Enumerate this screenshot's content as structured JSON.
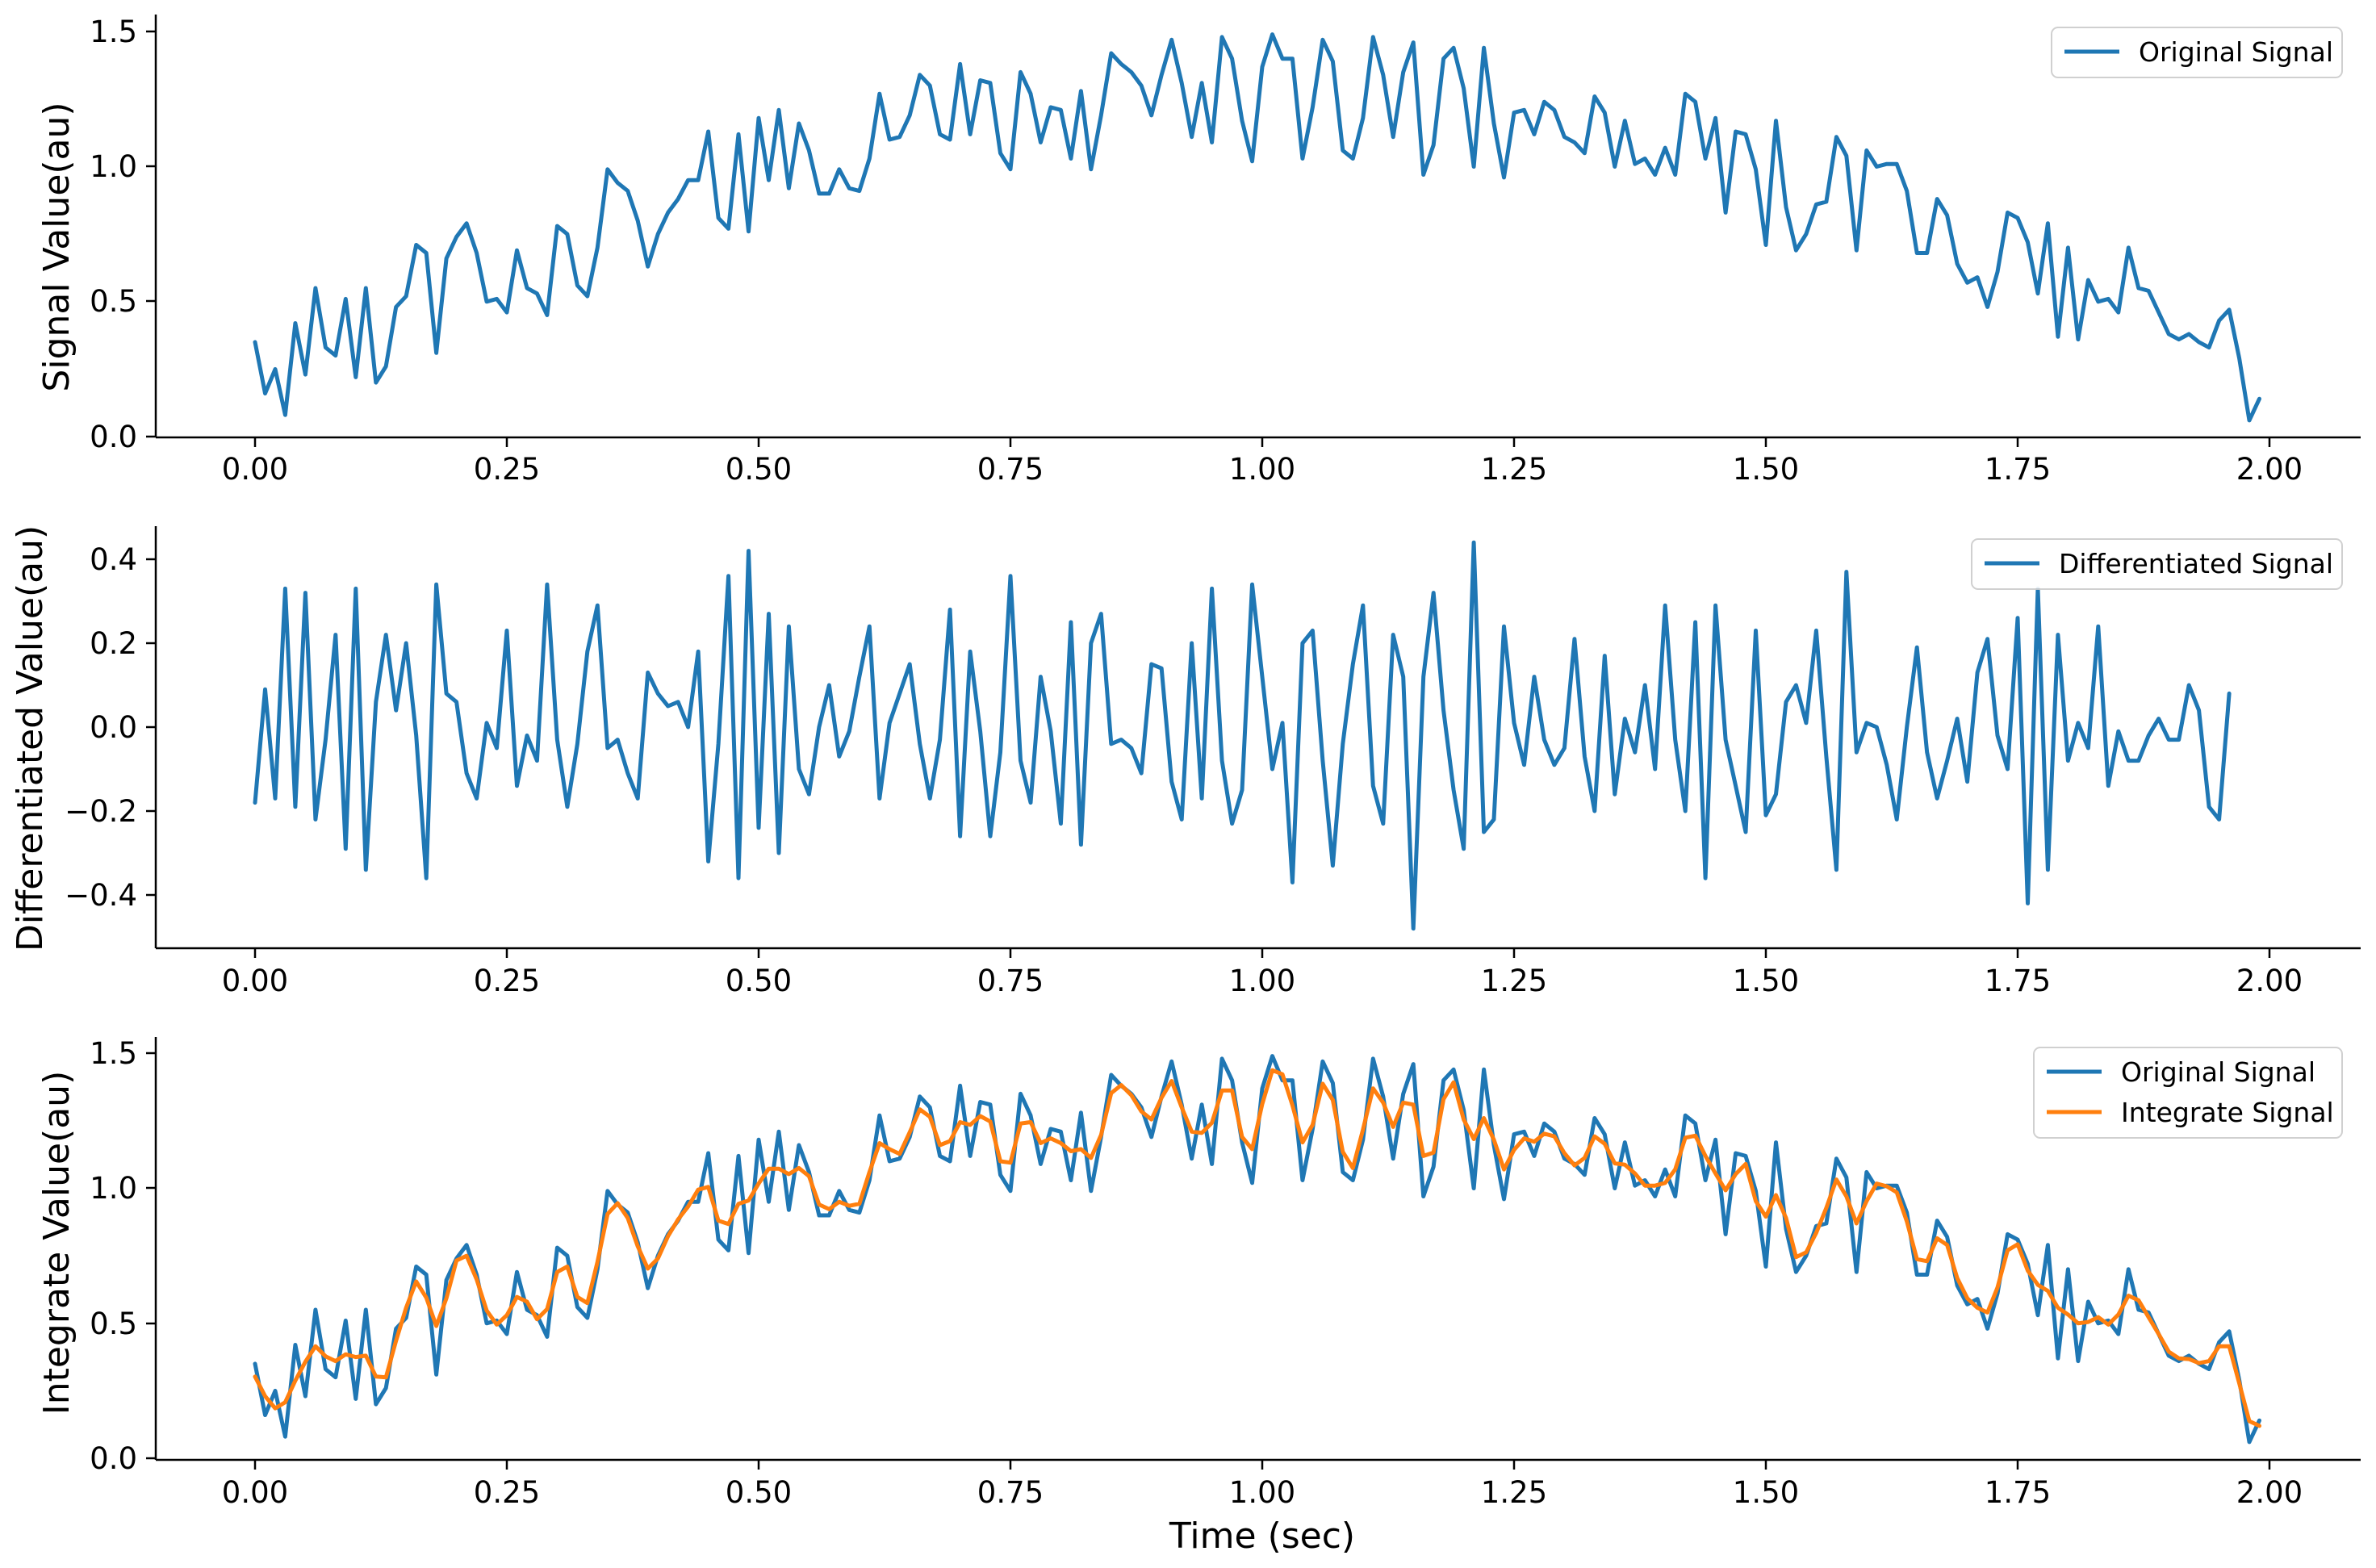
{
  "colors": {
    "blue": "#1f77b4",
    "orange": "#ff7f0e"
  },
  "xlabel": "Time (sec)",
  "chart_data": [
    {
      "type": "line",
      "id": "top",
      "ylabel": "Signal Value(au)",
      "xlim": [
        -0.1,
        2.08
      ],
      "ylim": [
        -0.02,
        1.57
      ],
      "x_ticks": [
        0,
        0.25,
        0.5,
        0.75,
        1.0,
        1.25,
        1.5,
        1.75,
        2.0
      ],
      "x_tick_labels": [
        "0.00",
        "0.25",
        "0.50",
        "0.75",
        "1.00",
        "1.25",
        "1.50",
        "1.75",
        "2.00"
      ],
      "y_ticks": [
        0,
        0.5,
        1.0,
        1.5
      ],
      "y_tick_labels": [
        "0.0",
        "0.5",
        "1.0",
        "1.5"
      ],
      "legend_position": "upper-right",
      "series": [
        {
          "name": "Original Signal",
          "color": "#1f77b4",
          "x0": 0,
          "dx": 0.01,
          "values": [
            0.35,
            0.16,
            0.25,
            0.08,
            0.42,
            0.23,
            0.55,
            0.33,
            0.3,
            0.51,
            0.22,
            0.55,
            0.2,
            0.26,
            0.48,
            0.52,
            0.71,
            0.68,
            0.31,
            0.66,
            0.74,
            0.79,
            0.68,
            0.5,
            0.51,
            0.46,
            0.69,
            0.55,
            0.53,
            0.45,
            0.78,
            0.75,
            0.56,
            0.52,
            0.7,
            0.99,
            0.94,
            0.91,
            0.8,
            0.63,
            0.75,
            0.83,
            0.88,
            0.95,
            0.95,
            1.13,
            0.81,
            0.77,
            1.12,
            0.76,
            1.18,
            0.95,
            1.21,
            0.92,
            1.16,
            1.06,
            0.9,
            0.9,
            0.99,
            0.92,
            0.91,
            1.03,
            1.27,
            1.1,
            1.11,
            1.19,
            1.34,
            1.3,
            1.12,
            1.1,
            1.38,
            1.12,
            1.32,
            1.31,
            1.05,
            0.99,
            1.35,
            1.27,
            1.09,
            1.22,
            1.21,
            1.03,
            1.28,
            0.99,
            1.19,
            1.42,
            1.38,
            1.35,
            1.3,
            1.19,
            1.34,
            1.47,
            1.31,
            1.11,
            1.31,
            1.09,
            1.48,
            1.4,
            1.17,
            1.02,
            1.37,
            1.49,
            1.4,
            1.4,
            1.03,
            1.22,
            1.47,
            1.39,
            1.06,
            1.03,
            1.18,
            1.48,
            1.34,
            1.11,
            1.35,
            1.46,
            0.97,
            1.08,
            1.4,
            1.44,
            1.29,
            1.0,
            1.44,
            1.16,
            0.96,
            1.2,
            1.21,
            1.12,
            1.24,
            1.21,
            1.11,
            1.09,
            1.05,
            1.26,
            1.2,
            1.0,
            1.17,
            1.01,
            1.03,
            0.97,
            1.07,
            0.97,
            1.27,
            1.24,
            1.03,
            1.18,
            0.83,
            1.13,
            1.12,
            0.99,
            0.71,
            1.17,
            0.85,
            0.69,
            0.75,
            0.86,
            0.87,
            1.11,
            1.04,
            0.69,
            1.06,
            1.0,
            1.01,
            1.01,
            0.91,
            0.68,
            0.68,
            0.88,
            0.82,
            0.64,
            0.57,
            0.59,
            0.48,
            0.61,
            0.83,
            0.81,
            0.72,
            0.53,
            0.79,
            0.37,
            0.7,
            0.36,
            0.58,
            0.5,
            0.51,
            0.46,
            0.7,
            0.55,
            0.54,
            0.46,
            0.38,
            0.36,
            0.38,
            0.35,
            0.33,
            0.43,
            0.47,
            0.29,
            0.06,
            0.14
          ]
        }
      ]
    },
    {
      "type": "line",
      "id": "middle",
      "ylabel": "Differentiated Value(au)",
      "xlim": [
        -0.1,
        2.08
      ],
      "ylim": [
        -0.53,
        0.48
      ],
      "x_ticks": [
        0,
        0.25,
        0.5,
        0.75,
        1.0,
        1.25,
        1.5,
        1.75,
        2.0
      ],
      "x_tick_labels": [
        "0.00",
        "0.25",
        "0.50",
        "0.75",
        "1.00",
        "1.25",
        "1.50",
        "1.75",
        "2.00"
      ],
      "y_ticks": [
        -0.4,
        -0.2,
        0.0,
        0.2,
        0.4
      ],
      "y_tick_labels": [
        "−0.4",
        "−0.2",
        "0.0",
        "0.2",
        "0.4"
      ],
      "legend_position": "upper-right",
      "series": [
        {
          "name": "Differentiated Signal",
          "color": "#1f77b4",
          "x0": 0,
          "dx": 0.01,
          "values": [
            -0.18,
            0.09,
            -0.17,
            0.33,
            -0.19,
            0.32,
            -0.22,
            -0.03,
            0.22,
            -0.29,
            0.33,
            -0.34,
            0.06,
            0.22,
            0.04,
            0.2,
            -0.02,
            -0.36,
            0.34,
            0.08,
            0.06,
            -0.11,
            -0.17,
            0.01,
            -0.05,
            0.23,
            -0.14,
            -0.02,
            -0.08,
            0.34,
            -0.03,
            -0.19,
            -0.04,
            0.18,
            0.29,
            -0.05,
            -0.03,
            -0.11,
            -0.17,
            0.13,
            0.08,
            0.05,
            0.06,
            0.0,
            0.18,
            -0.32,
            -0.04,
            0.36,
            -0.36,
            0.42,
            -0.24,
            0.27,
            -0.3,
            0.24,
            -0.1,
            -0.16,
            0.0,
            0.1,
            -0.07,
            -0.01,
            0.12,
            0.24,
            -0.17,
            0.01,
            0.08,
            0.15,
            -0.04,
            -0.17,
            -0.03,
            0.28,
            -0.26,
            0.18,
            -0.01,
            -0.26,
            -0.06,
            0.36,
            -0.08,
            -0.18,
            0.12,
            -0.01,
            -0.23,
            0.25,
            -0.28,
            0.2,
            0.27,
            -0.04,
            -0.03,
            -0.05,
            -0.11,
            0.15,
            0.14,
            -0.13,
            -0.22,
            0.2,
            -0.17,
            0.33,
            -0.08,
            -0.23,
            -0.15,
            0.34,
            0.12,
            -0.1,
            0.01,
            -0.37,
            0.2,
            0.23,
            -0.08,
            -0.33,
            -0.04,
            0.15,
            0.29,
            -0.14,
            -0.23,
            0.22,
            0.12,
            -0.48,
            0.12,
            0.32,
            0.04,
            -0.15,
            -0.29,
            0.44,
            -0.25,
            -0.22,
            0.24,
            0.01,
            -0.09,
            0.12,
            -0.03,
            -0.09,
            -0.05,
            0.21,
            -0.07,
            -0.2,
            0.17,
            -0.16,
            0.02,
            -0.06,
            0.1,
            -0.1,
            0.29,
            -0.03,
            -0.2,
            0.25,
            -0.36,
            0.29,
            -0.03,
            -0.14,
            -0.25,
            0.23,
            -0.21,
            -0.16,
            0.06,
            0.1,
            0.01,
            0.23,
            -0.07,
            -0.34,
            0.37,
            -0.06,
            0.01,
            0.0,
            -0.09,
            -0.22,
            0.0,
            0.19,
            -0.06,
            -0.17,
            -0.08,
            0.02,
            -0.13,
            0.13,
            0.21,
            -0.02,
            -0.1,
            0.26,
            -0.42,
            0.33,
            -0.34,
            0.22,
            -0.08,
            0.01,
            -0.05,
            0.24,
            -0.14,
            -0.01,
            -0.08,
            -0.08,
            -0.02,
            0.02,
            -0.03,
            -0.03,
            0.1,
            0.04,
            -0.19,
            -0.22,
            0.08
          ]
        }
      ]
    },
    {
      "type": "line",
      "id": "bottom",
      "ylabel": "Integrate Value(au)",
      "xlabel": "Time (sec)",
      "xlim": [
        -0.1,
        2.08
      ],
      "ylim": [
        -0.02,
        1.57
      ],
      "x_ticks": [
        0,
        0.25,
        0.5,
        0.75,
        1.0,
        1.25,
        1.5,
        1.75,
        2.0
      ],
      "x_tick_labels": [
        "0.00",
        "0.25",
        "0.50",
        "0.75",
        "1.00",
        "1.25",
        "1.50",
        "1.75",
        "2.00"
      ],
      "y_ticks": [
        0,
        0.5,
        1.0,
        1.5
      ],
      "y_tick_labels": [
        "0.0",
        "0.5",
        "1.0",
        "1.5"
      ],
      "legend_position": "upper-right",
      "series": [
        {
          "name": "Original Signal",
          "color": "#1f77b4",
          "x0": 0,
          "dx": 0.01,
          "same_as": "top"
        },
        {
          "name": "Integrate Signal",
          "color": "#ff7f0e",
          "x0": 0,
          "dx": 0.01,
          "smoothed_from": "top"
        }
      ]
    }
  ]
}
